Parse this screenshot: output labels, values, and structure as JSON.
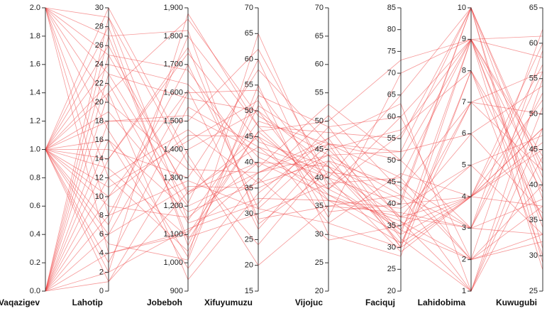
{
  "chart_data": {
    "type": "parallel-coordinates",
    "line_color": "#ee4444",
    "grid": false,
    "legend": "none",
    "dimensions": [
      {
        "name": "Vaqazigev",
        "min": 0,
        "max": 2,
        "ticks": [
          0,
          0.2,
          0.4,
          0.6,
          0.8,
          1,
          1.2,
          1.4,
          1.6,
          1.8,
          2
        ],
        "tick_labels": [
          "0.0",
          "0.2",
          "0.4",
          "0.6",
          "0.8",
          "1.0",
          "1.2",
          "1.4",
          "1.6",
          "1.8",
          "2.0"
        ]
      },
      {
        "name": "Lahotip",
        "min": 0,
        "max": 30,
        "ticks": [
          0,
          2,
          4,
          6,
          8,
          10,
          12,
          14,
          16,
          18,
          20,
          22,
          24,
          26,
          28,
          30
        ],
        "tick_labels": [
          "0",
          "2",
          "4",
          "6",
          "8",
          "10",
          "12",
          "14",
          "16",
          "18",
          "20",
          "22",
          "24",
          "26",
          "28",
          "30"
        ]
      },
      {
        "name": "Jobeboh",
        "min": 900,
        "max": 1900,
        "ticks": [
          900,
          1000,
          1100,
          1200,
          1300,
          1400,
          1500,
          1600,
          1700,
          1800,
          1900
        ],
        "tick_labels": [
          "900",
          "1,000",
          "1,100",
          "1,200",
          "1,300",
          "1,400",
          "1,500",
          "1,600",
          "1,700",
          "1,800",
          "1,900"
        ]
      },
      {
        "name": "Xifuyumuzu",
        "min": 15,
        "max": 70,
        "ticks": [
          15,
          20,
          25,
          30,
          35,
          40,
          45,
          50,
          55,
          60,
          65,
          70
        ],
        "tick_labels": [
          "15",
          "20",
          "25",
          "30",
          "35",
          "40",
          "45",
          "50",
          "55",
          "60",
          "65",
          "70"
        ]
      },
      {
        "name": "Vijojuc",
        "min": 20,
        "max": 70,
        "ticks": [
          20,
          25,
          30,
          35,
          40,
          45,
          50,
          55,
          60,
          65,
          70
        ],
        "tick_labels": [
          "20",
          "25",
          "30",
          "35",
          "40",
          "45",
          "50",
          "55",
          "60",
          "65",
          "70"
        ]
      },
      {
        "name": "Faciquj",
        "min": 20,
        "max": 85,
        "ticks": [
          20,
          25,
          30,
          35,
          40,
          45,
          50,
          55,
          60,
          65,
          70,
          75,
          80,
          85
        ],
        "tick_labels": [
          "20",
          "25",
          "30",
          "35",
          "40",
          "45",
          "50",
          "55",
          "60",
          "65",
          "70",
          "75",
          "80",
          "85"
        ]
      },
      {
        "name": "Lahidobima",
        "min": 1,
        "max": 10,
        "ticks": [
          1,
          2,
          3,
          4,
          5,
          6,
          7,
          8,
          9,
          10
        ],
        "tick_labels": [
          "1",
          "2",
          "3",
          "4",
          "5",
          "6",
          "7",
          "8",
          "9",
          "10"
        ]
      },
      {
        "name": "Kuwugubi",
        "min": 25,
        "max": 65,
        "ticks": [
          25,
          30,
          35,
          40,
          45,
          50,
          55,
          60,
          65
        ],
        "tick_labels": [
          "25",
          "30",
          "35",
          "40",
          "45",
          "50",
          "55",
          "60",
          "65"
        ]
      }
    ],
    "rows": [
      [
        2,
        29,
        1150,
        48,
        46,
        30,
        9,
        61
      ],
      [
        2,
        27,
        1820,
        28,
        41,
        45,
        3,
        38
      ],
      [
        2,
        25,
        1250,
        43,
        36,
        37,
        4,
        48
      ],
      [
        2,
        23,
        1580,
        50,
        42,
        33,
        9,
        58
      ],
      [
        2,
        20,
        1330,
        38,
        46,
        52,
        10,
        41
      ],
      [
        2,
        17,
        1020,
        65,
        38,
        60,
        2,
        33
      ],
      [
        2,
        12,
        1470,
        36,
        43,
        34,
        7,
        56
      ],
      [
        2,
        8,
        1700,
        31,
        32,
        47,
        4,
        45
      ],
      [
        2,
        4,
        1100,
        46,
        50,
        73,
        9,
        28
      ],
      [
        1,
        30,
        1380,
        20,
        35,
        42,
        3,
        62
      ],
      [
        1,
        28,
        1060,
        53,
        49,
        36,
        2,
        37
      ],
      [
        1,
        26,
        1240,
        45,
        40,
        29,
        4,
        52
      ],
      [
        1,
        24,
        1630,
        41,
        38,
        56,
        9,
        35
      ],
      [
        1,
        22,
        1140,
        33,
        36,
        39,
        5,
        47
      ],
      [
        1,
        21,
        1860,
        49,
        44,
        30,
        8,
        30
      ],
      [
        1,
        19,
        1200,
        38,
        47,
        63,
        1,
        55
      ],
      [
        1,
        18,
        1500,
        62,
        40,
        40,
        10,
        42
      ],
      [
        1,
        16,
        980,
        37,
        29,
        35,
        4,
        60
      ],
      [
        1,
        15,
        1300,
        58,
        46,
        50,
        3,
        33
      ],
      [
        1,
        14,
        1740,
        44,
        42,
        31,
        7,
        50
      ],
      [
        1,
        13,
        1090,
        30,
        39,
        46,
        2,
        40
      ],
      [
        1,
        11,
        1430,
        52,
        33,
        70,
        9,
        44
      ],
      [
        1,
        10,
        1610,
        27,
        45,
        37,
        6,
        36
      ],
      [
        1,
        9,
        1160,
        40,
        37,
        33,
        4,
        57
      ],
      [
        1,
        7,
        1800,
        47,
        48,
        55,
        10,
        31
      ],
      [
        1,
        6,
        1270,
        35,
        44,
        42,
        1,
        48
      ],
      [
        1,
        5,
        1010,
        55,
        30,
        28,
        8,
        39
      ],
      [
        1,
        3,
        1550,
        43,
        41,
        37,
        3,
        53
      ],
      [
        1,
        2,
        1120,
        32,
        49,
        60,
        9,
        34
      ],
      [
        1,
        1,
        1400,
        50,
        36,
        31,
        4,
        46
      ],
      [
        0,
        29,
        1350,
        24,
        43,
        44,
        2,
        59
      ],
      [
        0,
        27,
        1080,
        46,
        38,
        35,
        5,
        33
      ],
      [
        0,
        25,
        1680,
        39,
        53,
        50,
        9,
        43
      ],
      [
        0,
        23,
        1210,
        60,
        34,
        40,
        4,
        37
      ],
      [
        0,
        21,
        940,
        34,
        47,
        32,
        1,
        51
      ],
      [
        0,
        18,
        1520,
        42,
        40,
        65,
        10,
        29
      ],
      [
        0,
        16,
        1180,
        36,
        51,
        43,
        7,
        42
      ],
      [
        0,
        14,
        1760,
        29,
        35,
        38,
        3,
        56
      ],
      [
        0,
        12,
        1040,
        51,
        45,
        57,
        8,
        35
      ],
      [
        0,
        10,
        1450,
        45,
        32,
        30,
        4,
        48
      ],
      [
        0,
        8,
        1290,
        31,
        46,
        46,
        9,
        40
      ],
      [
        0,
        6,
        1600,
        54,
        39,
        34,
        2,
        32
      ],
      [
        0,
        4,
        1110,
        38,
        44,
        52,
        6,
        54
      ],
      [
        0,
        2,
        1880,
        47,
        37,
        36,
        1,
        44
      ],
      [
        0,
        1,
        1250,
        40,
        42,
        41,
        10,
        38
      ]
    ]
  }
}
